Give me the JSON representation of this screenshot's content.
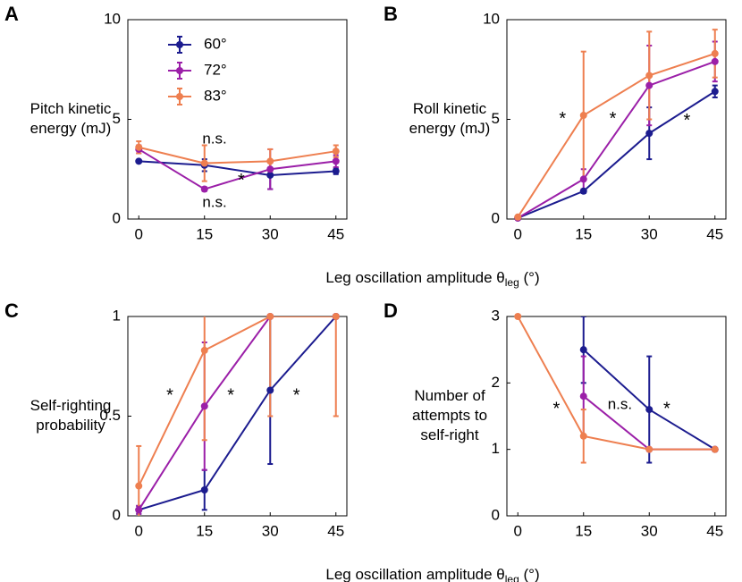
{
  "chart_data": [
    {
      "type": "line",
      "panel": "A",
      "ylabel": [
        "Pitch kinetic",
        "energy (mJ)"
      ],
      "x": [
        0,
        15,
        30,
        45
      ],
      "xlim": [
        -2.5,
        47.5
      ],
      "xticks": [
        0,
        15,
        30,
        45
      ],
      "ylim": [
        0,
        10
      ],
      "yticks": [
        0,
        5,
        10
      ],
      "legend": "upper left",
      "xlabel": {
        "text": "Leg oscillation amplitude θ",
        "subscript": "leg",
        "suffix": " (°)"
      },
      "series": [
        {
          "name": "60°",
          "color": "#1c1c8f",
          "values": [
            2.9,
            2.7,
            2.2,
            2.4
          ],
          "errors": [
            0.05,
            0.3,
            0.7,
            0.15
          ]
        },
        {
          "name": "72°",
          "color": "#9b1fa8",
          "values": [
            3.5,
            1.5,
            2.5,
            2.9
          ],
          "errors": [
            0.2,
            0.1,
            1.0,
            0.3
          ]
        },
        {
          "name": "83°",
          "color": "#ee7f50",
          "values": [
            3.6,
            2.8,
            2.9,
            3.4
          ],
          "errors": [
            0.3,
            0.9,
            0.6,
            0.3
          ]
        }
      ],
      "annotations": [
        {
          "text": "n.s.",
          "x": 17.3,
          "y": 4.0,
          "color": "#ee7f50"
        },
        {
          "text": "*",
          "x": 23.4,
          "y": 1.9,
          "color": "#1c1c8f"
        },
        {
          "text": "n.s.",
          "x": 17.3,
          "y": 0.8,
          "color": "#9b1fa8"
        }
      ]
    },
    {
      "type": "line",
      "panel": "B",
      "ylabel": [
        "Roll kinetic",
        "energy (mJ)"
      ],
      "x": [
        0,
        15,
        30,
        45
      ],
      "xlim": [
        -2.5,
        47.5
      ],
      "xticks": [
        0,
        15,
        30,
        45
      ],
      "ylim": [
        0,
        10
      ],
      "yticks": [
        0,
        5,
        10
      ],
      "series": [
        {
          "color": "#1c1c8f",
          "values": [
            0.05,
            1.4,
            4.3,
            6.4
          ],
          "errors": [
            0.05,
            0.1,
            1.3,
            0.3
          ]
        },
        {
          "color": "#9b1fa8",
          "values": [
            0.05,
            2.0,
            6.7,
            7.9
          ],
          "errors": [
            0.05,
            0.5,
            2.0,
            1.0
          ]
        },
        {
          "color": "#ee7f50",
          "values": [
            0.1,
            5.2,
            7.2,
            8.3
          ],
          "errors": [
            0.05,
            3.2,
            2.2,
            1.2
          ]
        }
      ],
      "annotations": [
        {
          "text": "*",
          "x": 10.2,
          "y": 5.0,
          "color": "#ee7f50"
        },
        {
          "text": "*",
          "x": 21.7,
          "y": 5.0,
          "color": "#9b1fa8"
        },
        {
          "text": "*",
          "x": 38.6,
          "y": 4.9,
          "color": "#1c1c8f"
        }
      ]
    },
    {
      "type": "line",
      "panel": "C",
      "ylabel": [
        "Self-righting",
        "probability"
      ],
      "x": [
        0,
        15,
        30,
        45
      ],
      "xlim": [
        -2.5,
        47.5
      ],
      "xticks": [
        0,
        15,
        30,
        45
      ],
      "ylim": [
        0,
        1
      ],
      "yticks": [
        0,
        0.5,
        1
      ],
      "xlabel": {
        "text": "Leg oscillation amplitude θ",
        "subscript": "leg",
        "suffix": " (°)"
      },
      "series": [
        {
          "color": "#1c1c8f",
          "values": [
            0.03,
            0.13,
            0.63,
            1.0
          ],
          "errors": [
            0.02,
            0.1,
            0.37,
            0
          ]
        },
        {
          "color": "#9b1fa8",
          "values": [
            0.03,
            0.55,
            1.0,
            1.0
          ],
          "errors": [
            0.02,
            0.32,
            0,
            0
          ]
        },
        {
          "color": "#ee7f50",
          "values": [
            0.15,
            0.83,
            1.0,
            1.0
          ],
          "errors": [
            0.2,
            0.45,
            0.5,
            0.5
          ]
        }
      ],
      "annotations": [
        {
          "text": "*",
          "x": 7.1,
          "y": 0.6,
          "color": "#ee7f50"
        },
        {
          "text": "*",
          "x": 21,
          "y": 0.6,
          "color": "#9b1fa8"
        },
        {
          "text": "*",
          "x": 36,
          "y": 0.6,
          "color": "#1c1c8f"
        }
      ]
    },
    {
      "type": "line",
      "panel": "D",
      "ylabel": [
        "Number of",
        "attempts to",
        "self-right"
      ],
      "x": [
        0,
        15,
        30,
        45
      ],
      "xlim": [
        -2.5,
        47.5
      ],
      "xticks": [
        0,
        15,
        30,
        45
      ],
      "ylim": [
        0,
        3
      ],
      "yticks": [
        0,
        1,
        2,
        3
      ],
      "series": [
        {
          "color": "#1c1c8f",
          "values": [
            null,
            2.5,
            1.6,
            1.0
          ],
          "errors": [
            null,
            0.5,
            0.8,
            0
          ]
        },
        {
          "color": "#9b1fa8",
          "values": [
            null,
            1.8,
            1.0,
            1.0
          ],
          "errors": [
            null,
            0.6,
            0,
            0
          ]
        },
        {
          "color": "#ee7f50",
          "values": [
            3.0,
            1.2,
            1.0,
            1.0
          ],
          "errors": [
            0,
            0.4,
            0,
            0
          ]
        }
      ],
      "annotations": [
        {
          "text": "*",
          "x": 8.8,
          "y": 1.6,
          "color": "#ee7f50"
        },
        {
          "text": "n.s.",
          "x": 23.3,
          "y": 1.67,
          "color": "#9b1fa8"
        },
        {
          "text": "*",
          "x": 34,
          "y": 1.6,
          "color": "#1c1c8f"
        }
      ]
    }
  ]
}
